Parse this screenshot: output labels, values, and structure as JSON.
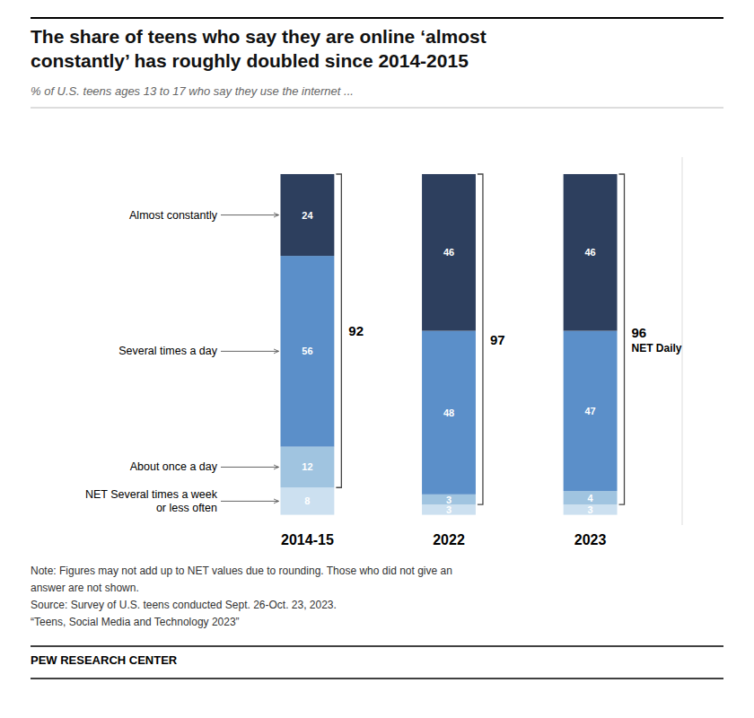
{
  "chart_data": {
    "type": "bar",
    "stacked": true,
    "title": [
      "The share of teens who say they are online ‘almost",
      "constantly’ has roughly doubled since 2014-2015"
    ],
    "subtitle": "% of U.S. teens ages 13 to 17 who say they use the internet ...",
    "categories": [
      "2014-15",
      "2022",
      "2023"
    ],
    "series": [
      {
        "name": "NET Several times a week\nor less often",
        "color": "#cce0f0",
        "values": [
          8,
          3,
          3
        ]
      },
      {
        "name": "About once a day",
        "color": "#a0c4e0",
        "values": [
          12,
          3,
          4
        ]
      },
      {
        "name": "Several times a day",
        "color": "#5b8fc9",
        "values": [
          56,
          48,
          47
        ]
      },
      {
        "name": "Almost constantly",
        "color": "#2d3f5e",
        "values": [
          24,
          46,
          46
        ]
      }
    ],
    "net_daily": {
      "label": "NET Daily",
      "values": [
        92,
        97,
        96
      ]
    },
    "ylim": [
      -3,
      105
    ],
    "tick_labels": "x",
    "data_labels": true,
    "notes": [
      "Note: Figures may not add up to NET values due to rounding. Those who did not give an",
      "answer are not shown.",
      "Source: Survey of U.S. teens conducted Sept. 26-Oct. 23, 2023.",
      "“Teens, Social Media and Technology 2023”"
    ],
    "source": "PEW RESEARCH CENTER"
  }
}
